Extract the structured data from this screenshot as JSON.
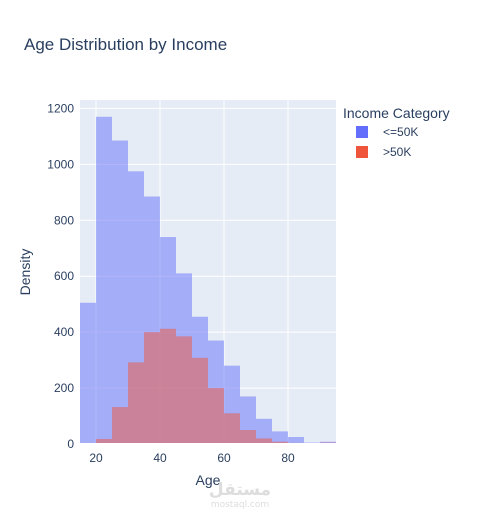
{
  "chart_data": {
    "type": "bar",
    "title": "Age Distribution by Income",
    "xlabel": "Age",
    "ylabel": "Density",
    "xlim": [
      15,
      95
    ],
    "ylim": [
      0,
      1230
    ],
    "xticks": [
      20,
      40,
      60,
      80
    ],
    "yticks": [
      0,
      200,
      400,
      600,
      800,
      1000,
      1200
    ],
    "grid": true,
    "barmode": "overlay",
    "bin_width": 5,
    "legend": {
      "title": "Income Category",
      "placement": "right"
    },
    "series": [
      {
        "name": "<=50K",
        "color": "#636efa",
        "bins": [
          15,
          20,
          25,
          30,
          35,
          40,
          45,
          50,
          55,
          60,
          65,
          70,
          75,
          80,
          85,
          90
        ],
        "values": [
          505,
          1170,
          1085,
          975,
          885,
          740,
          610,
          455,
          370,
          280,
          170,
          90,
          45,
          25,
          5,
          8
        ]
      },
      {
        "name": ">50K",
        "color": "#ef553b",
        "bins": [
          15,
          20,
          25,
          30,
          35,
          40,
          45,
          50,
          55,
          60,
          65,
          70,
          75,
          80,
          85,
          90
        ],
        "values": [
          0,
          18,
          132,
          292,
          400,
          412,
          385,
          308,
          200,
          110,
          50,
          20,
          8,
          4,
          2,
          5
        ]
      }
    ]
  },
  "watermark": {
    "arabic": "مستقل",
    "latin": "mostaql.com"
  }
}
